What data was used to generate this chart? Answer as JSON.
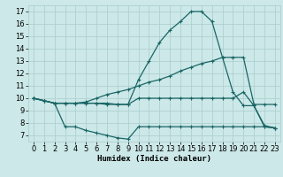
{
  "line1_x": [
    0,
    1,
    2,
    3,
    4,
    5,
    6,
    7,
    8,
    9,
    10,
    11,
    12,
    13,
    14,
    15,
    16,
    17,
    18,
    19,
    20,
    21,
    22,
    23
  ],
  "line1_y": [
    10.0,
    9.8,
    9.6,
    9.6,
    9.6,
    9.6,
    9.6,
    9.5,
    9.5,
    9.5,
    11.5,
    13.0,
    14.5,
    15.5,
    16.2,
    17.0,
    17.0,
    16.2,
    13.3,
    10.5,
    9.4,
    9.4,
    7.8,
    7.6
  ],
  "line2_x": [
    0,
    1,
    2,
    3,
    4,
    5,
    6,
    7,
    8,
    9,
    10,
    11,
    12,
    13,
    14,
    15,
    16,
    17,
    18,
    19,
    20,
    21,
    22,
    23
  ],
  "line2_y": [
    10.0,
    9.8,
    9.6,
    9.6,
    9.6,
    9.7,
    10.0,
    10.3,
    10.5,
    10.7,
    11.0,
    11.3,
    11.5,
    11.8,
    12.2,
    12.5,
    12.8,
    13.0,
    13.3,
    13.3,
    13.3,
    9.5,
    9.5,
    9.5
  ],
  "line3_x": [
    0,
    1,
    2,
    3,
    4,
    5,
    6,
    7,
    8,
    9,
    10,
    11,
    12,
    13,
    14,
    15,
    16,
    17,
    18,
    19,
    20,
    21,
    22,
    23
  ],
  "line3_y": [
    10.0,
    9.8,
    9.6,
    9.6,
    9.6,
    9.6,
    9.6,
    9.6,
    9.5,
    9.5,
    10.0,
    10.0,
    10.0,
    10.0,
    10.0,
    10.0,
    10.0,
    10.0,
    10.0,
    10.0,
    10.5,
    9.4,
    7.7,
    7.6
  ],
  "line4_x": [
    0,
    1,
    2,
    3,
    4,
    5,
    6,
    7,
    8,
    9,
    10,
    11,
    12,
    13,
    14,
    15,
    16,
    17,
    18,
    19,
    20,
    21,
    22,
    23
  ],
  "line4_y": [
    10.0,
    9.8,
    9.6,
    7.7,
    7.7,
    7.4,
    7.2,
    7.0,
    6.8,
    6.7,
    7.7,
    7.7,
    7.7,
    7.7,
    7.7,
    7.7,
    7.7,
    7.7,
    7.7,
    7.7,
    7.7,
    7.7,
    7.7,
    7.6
  ],
  "line_color": "#1a6666",
  "marker": "+",
  "markersize": 3,
  "markeredgewidth": 0.8,
  "linewidth": 0.9,
  "bg_color": "#cce8e8",
  "grid_color": "#aacccc",
  "xlabel": "Humidex (Indice chaleur)",
  "xlabel_fontsize": 6.5,
  "tick_fontsize": 6,
  "xlim": [
    -0.5,
    23.5
  ],
  "ylim": [
    6.5,
    17.5
  ],
  "yticks": [
    7,
    8,
    9,
    10,
    11,
    12,
    13,
    14,
    15,
    16,
    17
  ],
  "xticks": [
    0,
    1,
    2,
    3,
    4,
    5,
    6,
    7,
    8,
    9,
    10,
    11,
    12,
    13,
    14,
    15,
    16,
    17,
    18,
    19,
    20,
    21,
    22,
    23
  ]
}
